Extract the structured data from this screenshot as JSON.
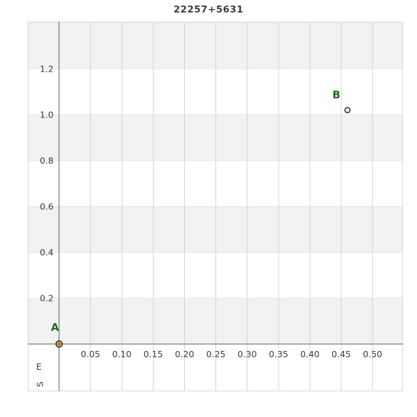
{
  "page": {
    "background": "#ffffff"
  },
  "chart_data": {
    "type": "scatter",
    "title": "22257+5631",
    "xlabel": "E",
    "ylabel": "S",
    "grid": true,
    "legend": "none",
    "xlim": [
      -0.05,
      0.5487
    ],
    "ylim": [
      -0.2061,
      1.4061
    ],
    "x_tick_values": [
      0.05,
      0.1,
      0.15,
      0.2,
      0.25,
      0.3,
      0.35,
      0.4,
      0.45,
      0.5
    ],
    "x_tick_labels": [
      "0.05",
      "0.10",
      "0.15",
      "0.20",
      "0.25",
      "0.30",
      "0.35",
      "0.40",
      "0.45",
      "0.50"
    ],
    "y_tick_values": [
      0.2,
      0.4,
      0.6,
      0.8,
      1.0,
      1.2
    ],
    "y_tick_labels": [
      "0.2",
      "0.4",
      "0.6",
      "0.8",
      "1.0",
      "1.2"
    ],
    "h_grid_values": [
      0.2,
      0.4,
      0.6,
      0.8,
      1.0,
      1.2,
      1.4
    ],
    "shaded_bands": [
      [
        0.0,
        0.2
      ],
      [
        0.4,
        0.6
      ],
      [
        0.8,
        1.0
      ],
      [
        1.2,
        1.4
      ]
    ],
    "points": [
      {
        "label": "A",
        "x": 0.0,
        "y": 0.0,
        "fill": "#f5ab2e",
        "radius": 4.6,
        "label_offset": [
          -6,
          -24
        ]
      },
      {
        "label": "B",
        "x": 0.46,
        "y": 1.02,
        "fill": "#e2e2e2",
        "radius": 3.8,
        "label_offset": [
          -16,
          -22
        ]
      }
    ],
    "colors": {
      "band": "#f2f2f2",
      "grid_vertical": "#d4d4d4",
      "grid_horizontal": "#e4e4e4",
      "plot_border": "#d9d9d9",
      "axis_line": "#585858",
      "tick_text": "#3d3d3d",
      "title_text": "#3d3d3d",
      "point_label": "#1a6b1a",
      "marker_stroke": "#2a2a2a"
    }
  }
}
